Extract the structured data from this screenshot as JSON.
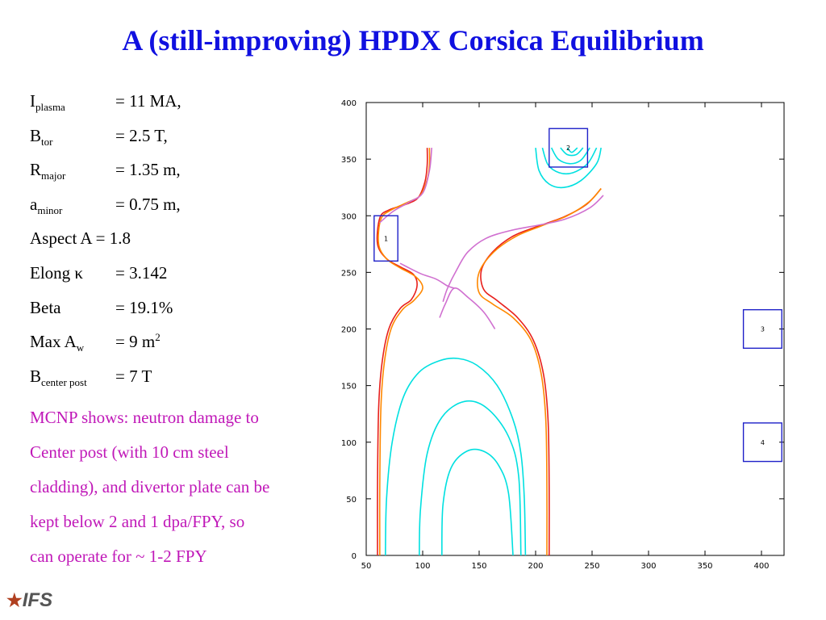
{
  "title": "A (still-improving) HPDX Corsica Equilibrium",
  "params": {
    "i_plasma": {
      "main": "I",
      "sub": "plasma",
      "value": "= 11 MA,"
    },
    "b_tor": {
      "main": "B",
      "sub": "tor",
      "value": "= 2.5 T,"
    },
    "r_major": {
      "main": "R",
      "sub": "major",
      "value": "= 1.35 m,"
    },
    "a_minor": {
      "main": "a",
      "sub": "minor",
      "value": "= 0.75 m,"
    },
    "aspect": "Aspect A = 1.8",
    "elong": {
      "main": "Elong κ",
      "value": "= 3.142"
    },
    "beta": {
      "main": "Beta",
      "value": "= 19.1%"
    },
    "max_aw": {
      "main": "Max A",
      "sub": "w",
      "value": "= 9 m",
      "sup": "2"
    },
    "b_center_post": {
      "main": "B",
      "sub": "center post",
      "value": "= 7 T"
    }
  },
  "note": [
    "MCNP shows: neutron damage to",
    "Center post (with 10 cm steel",
    "cladding), and divertor plate can be",
    "kept  below 2 and 1 dpa/FPY,  so",
    "can operate for ~ 1-2 FPY"
  ],
  "logo": {
    "star": "★",
    "text": "IFS"
  },
  "chart_data": {
    "type": "line",
    "title": "",
    "xlabel": "",
    "ylabel": "",
    "xlim": [
      50,
      420
    ],
    "ylim": [
      0,
      400
    ],
    "xticks": [
      50,
      100,
      150,
      200,
      250,
      300,
      350,
      400
    ],
    "yticks": [
      0,
      50,
      100,
      150,
      200,
      250,
      300,
      350,
      400
    ],
    "grid": false,
    "colors": {
      "red": "#e8201c",
      "orange": "#ff8800",
      "violet": "#d070d0",
      "cyan": "#00e0e0",
      "box": "#1e20c8"
    },
    "series": [
      {
        "color": "red",
        "points": [
          [
            60,
            0
          ],
          [
            60,
            60
          ],
          [
            61,
            130
          ],
          [
            64,
            170
          ],
          [
            70,
            200
          ],
          [
            80,
            218
          ],
          [
            90,
            226
          ],
          [
            95,
            238
          ],
          [
            92,
            248
          ],
          [
            80,
            255
          ],
          [
            68,
            262
          ],
          [
            60,
            275
          ],
          [
            62,
            298
          ],
          [
            70,
            305
          ],
          [
            85,
            310
          ],
          [
            96,
            316
          ],
          [
            102,
            330
          ],
          [
            104,
            345
          ],
          [
            104,
            360
          ]
        ]
      },
      {
        "color": "red",
        "points": [
          [
            212,
            0
          ],
          [
            212,
            60
          ],
          [
            211,
            120
          ],
          [
            207,
            160
          ],
          [
            198,
            190
          ],
          [
            184,
            210
          ],
          [
            166,
            225
          ],
          [
            154,
            235
          ],
          [
            152,
            252
          ],
          [
            162,
            268
          ],
          [
            180,
            282
          ],
          [
            200,
            290
          ],
          [
            225,
            299
          ],
          [
            245,
            310
          ],
          [
            258,
            324
          ]
        ]
      },
      {
        "color": "orange",
        "points": [
          [
            62,
            0
          ],
          [
            62,
            60
          ],
          [
            63,
            130
          ],
          [
            66,
            170
          ],
          [
            72,
            200
          ],
          [
            82,
            217
          ],
          [
            92,
            225
          ],
          [
            100,
            236
          ],
          [
            94,
            246
          ],
          [
            80,
            254
          ],
          [
            68,
            262
          ],
          [
            61,
            275
          ],
          [
            63,
            297
          ],
          [
            72,
            305
          ],
          [
            87,
            312
          ],
          [
            98,
            318
          ],
          [
            104,
            332
          ],
          [
            106,
            345
          ],
          [
            106,
            360
          ]
        ]
      },
      {
        "color": "orange",
        "points": [
          [
            210,
            0
          ],
          [
            210,
            60
          ],
          [
            209,
            120
          ],
          [
            205,
            160
          ],
          [
            196,
            190
          ],
          [
            180,
            210
          ],
          [
            162,
            222
          ],
          [
            150,
            232
          ],
          [
            150,
            250
          ],
          [
            163,
            268
          ],
          [
            183,
            282
          ],
          [
            205,
            291
          ],
          [
            228,
            300
          ],
          [
            247,
            312
          ],
          [
            258,
            324
          ]
        ]
      },
      {
        "color": "violet",
        "points": [
          [
            80,
            258
          ],
          [
            98,
            249
          ],
          [
            112,
            244
          ],
          [
            122,
            238
          ],
          [
            128,
            236
          ]
        ]
      },
      {
        "color": "violet",
        "points": [
          [
            62,
            294
          ],
          [
            74,
            304
          ],
          [
            88,
            312
          ],
          [
            100,
            320
          ],
          [
            106,
            340
          ],
          [
            108,
            360
          ]
        ]
      },
      {
        "color": "violet",
        "points": [
          [
            118,
            224
          ],
          [
            122,
            236
          ],
          [
            130,
            252
          ],
          [
            140,
            268
          ],
          [
            156,
            280
          ],
          [
            178,
            287
          ],
          [
            204,
            292
          ],
          [
            226,
            297
          ],
          [
            248,
            307
          ],
          [
            260,
            318
          ]
        ]
      },
      {
        "color": "violet",
        "points": [
          [
            115,
            210
          ],
          [
            120,
            222
          ],
          [
            128,
            236
          ],
          [
            140,
            228
          ],
          [
            154,
            215
          ],
          [
            164,
            200
          ]
        ]
      },
      {
        "color": "cyan",
        "points": [
          [
            67,
            0
          ],
          [
            68,
            50
          ],
          [
            73,
            100
          ],
          [
            83,
            140
          ],
          [
            97,
            162
          ],
          [
            115,
            172
          ],
          [
            131,
            174
          ],
          [
            148,
            168
          ],
          [
            166,
            150
          ],
          [
            180,
            120
          ],
          [
            187,
            90
          ],
          [
            190,
            50
          ],
          [
            191,
            0
          ]
        ]
      },
      {
        "color": "cyan",
        "points": [
          [
            97,
            0
          ],
          [
            98,
            40
          ],
          [
            104,
            90
          ],
          [
            117,
            122
          ],
          [
            137,
            136
          ],
          [
            157,
            130
          ],
          [
            176,
            105
          ],
          [
            185,
            70
          ],
          [
            187,
            0
          ]
        ]
      },
      {
        "color": "cyan",
        "points": [
          [
            117,
            0
          ],
          [
            118,
            45
          ],
          [
            125,
            77
          ],
          [
            139,
            92
          ],
          [
            154,
            92
          ],
          [
            167,
            80
          ],
          [
            176,
            55
          ],
          [
            180,
            0
          ]
        ]
      },
      {
        "color": "cyan",
        "points": [
          [
            200,
            360
          ],
          [
            203,
            340
          ],
          [
            212,
            328
          ],
          [
            225,
            325
          ],
          [
            240,
            331
          ],
          [
            254,
            346
          ],
          [
            258,
            360
          ]
        ]
      },
      {
        "color": "cyan",
        "points": [
          [
            206,
            360
          ],
          [
            211,
            345
          ],
          [
            221,
            338
          ],
          [
            233,
            338
          ],
          [
            246,
            346
          ],
          [
            254,
            360
          ]
        ]
      },
      {
        "color": "cyan",
        "points": [
          [
            214,
            360
          ],
          [
            220,
            350
          ],
          [
            230,
            346
          ],
          [
            240,
            349
          ],
          [
            248,
            360
          ]
        ]
      },
      {
        "color": "cyan",
        "points": [
          [
            222,
            360
          ],
          [
            228,
            354
          ],
          [
            236,
            354
          ],
          [
            242,
            360
          ]
        ]
      },
      {
        "color": "cyan",
        "points": [
          [
            228,
            360
          ],
          [
            232,
            356
          ],
          [
            237,
            360
          ]
        ]
      }
    ],
    "boxes": [
      {
        "label": "1",
        "x": [
          57,
          78
        ],
        "y": [
          260,
          300
        ]
      },
      {
        "label": "2",
        "x": [
          212,
          246
        ],
        "y": [
          343,
          377
        ]
      },
      {
        "label": "3",
        "x": [
          384,
          418
        ],
        "y": [
          183,
          217
        ]
      },
      {
        "label": "4",
        "x": [
          384,
          418
        ],
        "y": [
          83,
          117
        ]
      }
    ]
  }
}
